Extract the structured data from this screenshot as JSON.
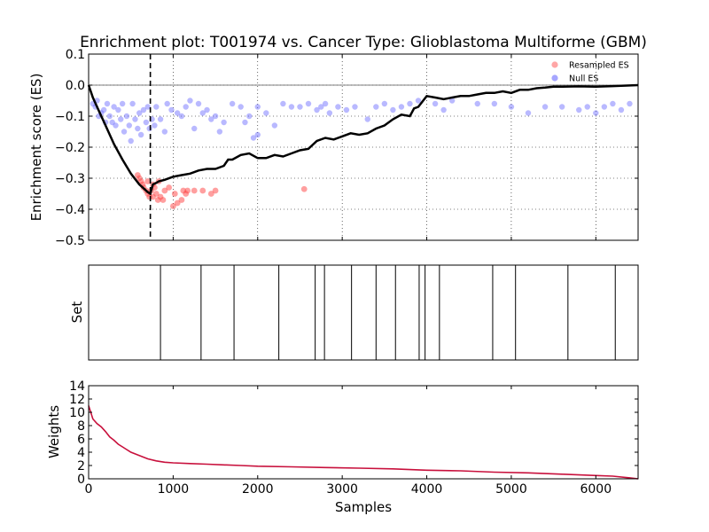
{
  "chart_data": {
    "type": "composite",
    "title": "Enrichment plot: T001974 vs. Cancer Type: Glioblastoma Multiforme (GBM)",
    "xlabel": "Samples",
    "xlim": [
      0,
      6500
    ],
    "xticks": [
      0,
      1000,
      2000,
      3000,
      4000,
      5000,
      6000
    ],
    "panels": {
      "es": {
        "type": "line+scatter",
        "ylabel": "Enrichment score (ES)",
        "ylim": [
          -0.5,
          0.1
        ],
        "yticks": [
          "0.1",
          "0.0",
          "−0.1",
          "−0.2",
          "−0.3",
          "−0.4",
          "−0.5"
        ],
        "grid": true,
        "legend_position": "top-right",
        "legend": [
          {
            "label": "Resampled ES",
            "color": "#ff8080"
          },
          {
            "label": "Null ES",
            "color": "#8080ff"
          }
        ],
        "max_deviation_x": 730,
        "es_curve": [
          [
            0,
            0.0
          ],
          [
            50,
            -0.04
          ],
          [
            100,
            -0.07
          ],
          [
            200,
            -0.13
          ],
          [
            300,
            -0.19
          ],
          [
            400,
            -0.24
          ],
          [
            500,
            -0.285
          ],
          [
            600,
            -0.32
          ],
          [
            700,
            -0.345
          ],
          [
            730,
            -0.35
          ],
          [
            760,
            -0.32
          ],
          [
            800,
            -0.315
          ],
          [
            830,
            -0.31
          ],
          [
            900,
            -0.305
          ],
          [
            1000,
            -0.295
          ],
          [
            1100,
            -0.29
          ],
          [
            1200,
            -0.285
          ],
          [
            1300,
            -0.275
          ],
          [
            1400,
            -0.27
          ],
          [
            1500,
            -0.27
          ],
          [
            1600,
            -0.26
          ],
          [
            1650,
            -0.24
          ],
          [
            1700,
            -0.24
          ],
          [
            1800,
            -0.225
          ],
          [
            1900,
            -0.22
          ],
          [
            2000,
            -0.235
          ],
          [
            2100,
            -0.235
          ],
          [
            2200,
            -0.225
          ],
          [
            2300,
            -0.23
          ],
          [
            2400,
            -0.22
          ],
          [
            2500,
            -0.21
          ],
          [
            2600,
            -0.205
          ],
          [
            2700,
            -0.18
          ],
          [
            2800,
            -0.17
          ],
          [
            2900,
            -0.175
          ],
          [
            3000,
            -0.165
          ],
          [
            3100,
            -0.155
          ],
          [
            3200,
            -0.16
          ],
          [
            3300,
            -0.155
          ],
          [
            3400,
            -0.14
          ],
          [
            3500,
            -0.13
          ],
          [
            3600,
            -0.11
          ],
          [
            3700,
            -0.095
          ],
          [
            3800,
            -0.1
          ],
          [
            3850,
            -0.075
          ],
          [
            3900,
            -0.07
          ],
          [
            4000,
            -0.035
          ],
          [
            4100,
            -0.04
          ],
          [
            4200,
            -0.045
          ],
          [
            4300,
            -0.04
          ],
          [
            4400,
            -0.035
          ],
          [
            4500,
            -0.035
          ],
          [
            4600,
            -0.03
          ],
          [
            4700,
            -0.025
          ],
          [
            4800,
            -0.025
          ],
          [
            4900,
            -0.02
          ],
          [
            5000,
            -0.025
          ],
          [
            5100,
            -0.015
          ],
          [
            5200,
            -0.015
          ],
          [
            5300,
            -0.01
          ],
          [
            5400,
            -0.008
          ],
          [
            5500,
            -0.005
          ],
          [
            5600,
            -0.005
          ],
          [
            5800,
            -0.004
          ],
          [
            6000,
            -0.005
          ],
          [
            6200,
            -0.003
          ],
          [
            6400,
            -0.001
          ],
          [
            6500,
            0.0
          ]
        ],
        "resampled_es": [
          [
            600,
            -0.3
          ],
          [
            620,
            -0.31
          ],
          [
            650,
            -0.33
          ],
          [
            680,
            -0.34
          ],
          [
            700,
            -0.35
          ],
          [
            720,
            -0.36
          ],
          [
            740,
            -0.34
          ],
          [
            760,
            -0.32
          ],
          [
            780,
            -0.33
          ],
          [
            800,
            -0.35
          ],
          [
            820,
            -0.37
          ],
          [
            850,
            -0.36
          ],
          [
            880,
            -0.37
          ],
          [
            900,
            -0.34
          ],
          [
            950,
            -0.33
          ],
          [
            1000,
            -0.39
          ],
          [
            1020,
            -0.35
          ],
          [
            1050,
            -0.38
          ],
          [
            1100,
            -0.37
          ],
          [
            1120,
            -0.34
          ],
          [
            1150,
            -0.35
          ],
          [
            1170,
            -0.34
          ],
          [
            1250,
            -0.34
          ],
          [
            1350,
            -0.34
          ],
          [
            1450,
            -0.35
          ],
          [
            1500,
            -0.34
          ],
          [
            2550,
            -0.335
          ],
          [
            580,
            -0.29
          ],
          [
            640,
            -0.32
          ],
          [
            700,
            -0.31
          ],
          [
            760,
            -0.36
          ],
          [
            830,
            -0.31
          ]
        ],
        "null_es": [
          [
            50,
            -0.06
          ],
          [
            80,
            -0.07
          ],
          [
            100,
            -0.05
          ],
          [
            120,
            -0.1
          ],
          [
            150,
            -0.09
          ],
          [
            180,
            -0.08
          ],
          [
            200,
            -0.12
          ],
          [
            220,
            -0.06
          ],
          [
            250,
            -0.1
          ],
          [
            280,
            -0.12
          ],
          [
            300,
            -0.07
          ],
          [
            320,
            -0.13
          ],
          [
            350,
            -0.08
          ],
          [
            380,
            -0.11
          ],
          [
            400,
            -0.06
          ],
          [
            420,
            -0.15
          ],
          [
            450,
            -0.1
          ],
          [
            480,
            -0.13
          ],
          [
            500,
            -0.18
          ],
          [
            520,
            -0.06
          ],
          [
            550,
            -0.11
          ],
          [
            580,
            -0.14
          ],
          [
            600,
            -0.09
          ],
          [
            620,
            -0.16
          ],
          [
            650,
            -0.08
          ],
          [
            680,
            -0.12
          ],
          [
            700,
            -0.07
          ],
          [
            720,
            -0.14
          ],
          [
            750,
            -0.11
          ],
          [
            780,
            -0.13
          ],
          [
            800,
            -0.07
          ],
          [
            850,
            -0.11
          ],
          [
            900,
            -0.15
          ],
          [
            930,
            -0.06
          ],
          [
            980,
            -0.08
          ],
          [
            1050,
            -0.09
          ],
          [
            1100,
            -0.1
          ],
          [
            1150,
            -0.07
          ],
          [
            1200,
            -0.05
          ],
          [
            1300,
            -0.06
          ],
          [
            1350,
            -0.09
          ],
          [
            1400,
            -0.08
          ],
          [
            1450,
            -0.11
          ],
          [
            1500,
            -0.1
          ],
          [
            1600,
            -0.12
          ],
          [
            1700,
            -0.06
          ],
          [
            1800,
            -0.07
          ],
          [
            1850,
            -0.12
          ],
          [
            1900,
            -0.1
          ],
          [
            2000,
            -0.07
          ],
          [
            2100,
            -0.09
          ],
          [
            2200,
            -0.13
          ],
          [
            2500,
            -0.07
          ],
          [
            2600,
            -0.06
          ],
          [
            2700,
            -0.08
          ],
          [
            2750,
            -0.07
          ],
          [
            2800,
            -0.06
          ],
          [
            2850,
            -0.09
          ],
          [
            2950,
            -0.07
          ],
          [
            3050,
            -0.08
          ],
          [
            3150,
            -0.07
          ],
          [
            3300,
            -0.11
          ],
          [
            3400,
            -0.07
          ],
          [
            3500,
            -0.06
          ],
          [
            3600,
            -0.08
          ],
          [
            3700,
            -0.07
          ],
          [
            3800,
            -0.06
          ],
          [
            3900,
            -0.05
          ],
          [
            4100,
            -0.06
          ],
          [
            4200,
            -0.08
          ],
          [
            4300,
            -0.05
          ],
          [
            4600,
            -0.06
          ],
          [
            4800,
            -0.06
          ],
          [
            5000,
            -0.07
          ],
          [
            5200,
            -0.09
          ],
          [
            5400,
            -0.07
          ],
          [
            5600,
            -0.07
          ],
          [
            5800,
            -0.08
          ],
          [
            5900,
            -0.07
          ],
          [
            6000,
            -0.09
          ],
          [
            6100,
            -0.07
          ],
          [
            6200,
            -0.06
          ],
          [
            6300,
            -0.08
          ],
          [
            6400,
            -0.06
          ],
          [
            2300,
            -0.06
          ],
          [
            2400,
            -0.07
          ],
          [
            1250,
            -0.14
          ],
          [
            1550,
            -0.15
          ],
          [
            1950,
            -0.17
          ],
          [
            2000,
            -0.16
          ]
        ]
      },
      "set": {
        "type": "barcode",
        "ylabel": "Set",
        "hits": [
          850,
          1330,
          1720,
          2250,
          2680,
          2790,
          3110,
          3400,
          3630,
          3910,
          3980,
          4150,
          4780,
          5050,
          5670,
          6230
        ]
      },
      "weights": {
        "type": "line",
        "ylabel": "Weights",
        "ylim": [
          0,
          14
        ],
        "yticks": [
          "14",
          "12",
          "10",
          "8",
          "6",
          "4",
          "2",
          "0"
        ],
        "curve": [
          [
            0,
            11.0
          ],
          [
            50,
            9.0
          ],
          [
            100,
            8.3
          ],
          [
            150,
            7.8
          ],
          [
            200,
            7.1
          ],
          [
            250,
            6.3
          ],
          [
            300,
            5.8
          ],
          [
            350,
            5.2
          ],
          [
            400,
            4.8
          ],
          [
            450,
            4.4
          ],
          [
            500,
            4.0
          ],
          [
            600,
            3.5
          ],
          [
            700,
            3.0
          ],
          [
            800,
            2.7
          ],
          [
            900,
            2.5
          ],
          [
            1000,
            2.4
          ],
          [
            1200,
            2.3
          ],
          [
            1400,
            2.2
          ],
          [
            1600,
            2.1
          ],
          [
            1800,
            2.0
          ],
          [
            2000,
            1.9
          ],
          [
            2400,
            1.8
          ],
          [
            2800,
            1.7
          ],
          [
            3200,
            1.6
          ],
          [
            3600,
            1.5
          ],
          [
            4000,
            1.3
          ],
          [
            4400,
            1.2
          ],
          [
            4800,
            1.0
          ],
          [
            5200,
            0.9
          ],
          [
            5600,
            0.7
          ],
          [
            6000,
            0.5
          ],
          [
            6200,
            0.4
          ],
          [
            6400,
            0.15
          ],
          [
            6500,
            0.0
          ]
        ]
      }
    }
  }
}
